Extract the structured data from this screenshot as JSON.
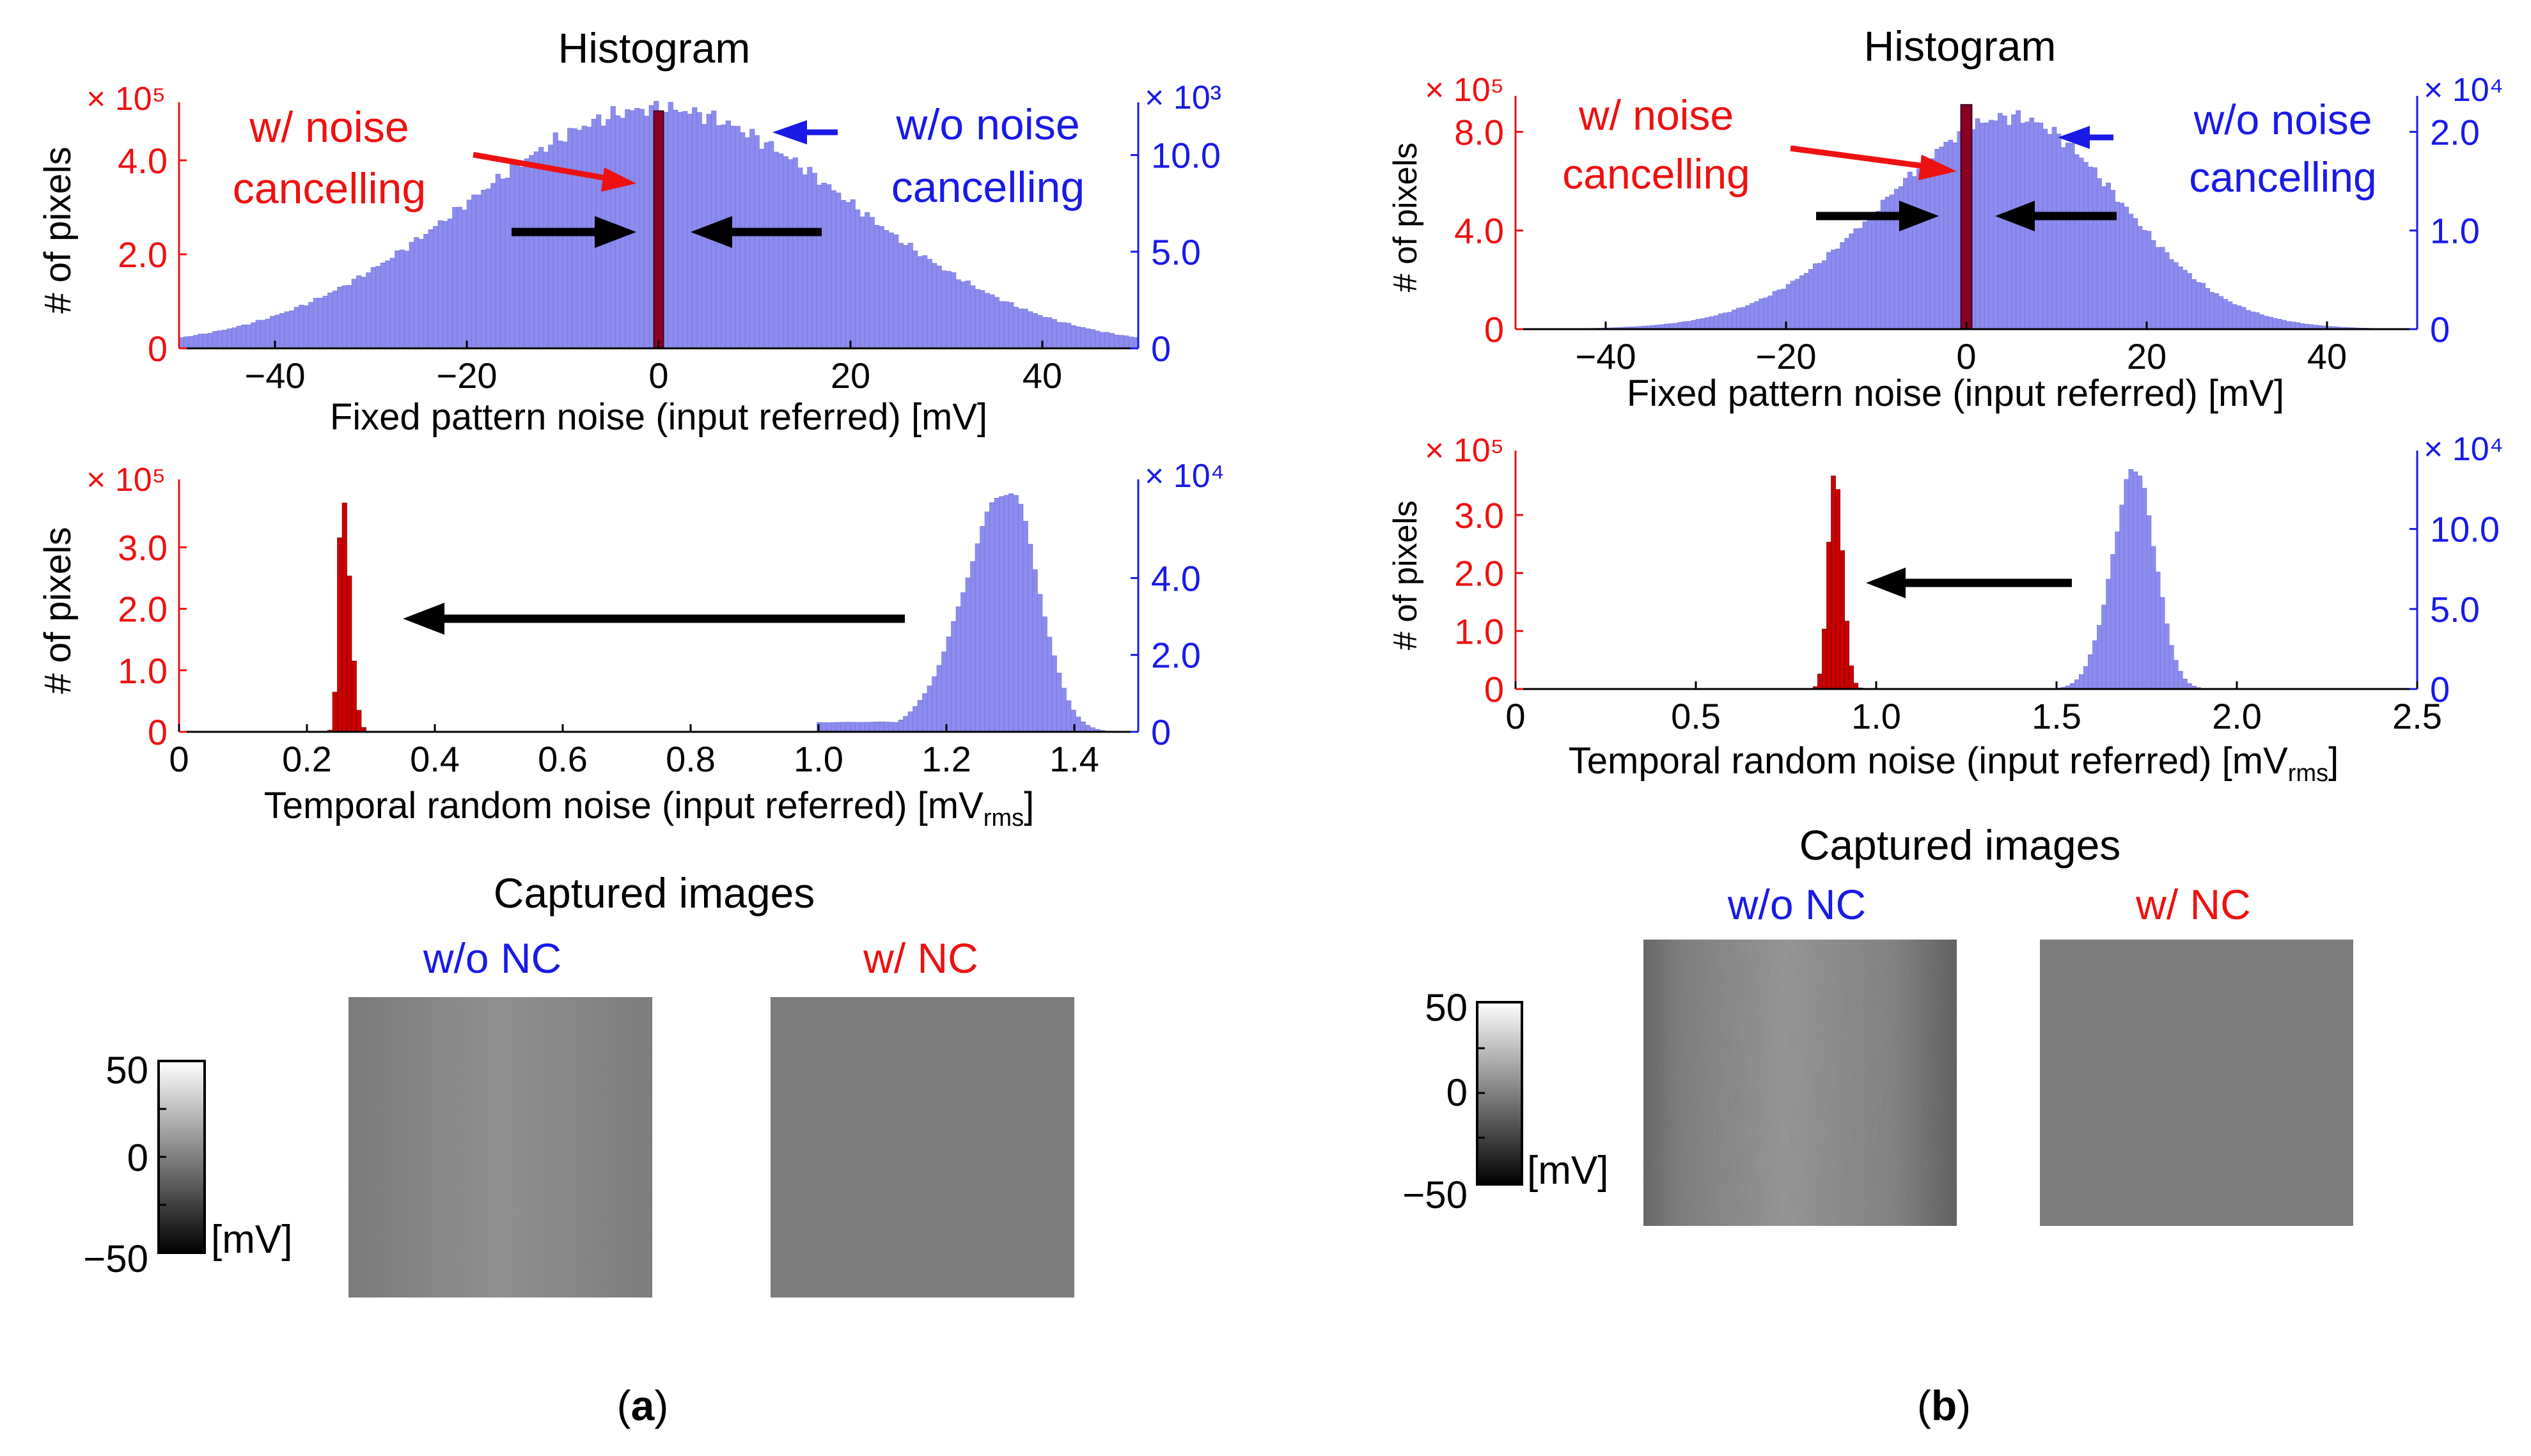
{
  "colors": {
    "red": "#ee1111",
    "blue": "#1a1ae6",
    "red_bar": "#cc0000",
    "blue_bar": "#8c8cee",
    "black": "#000000"
  },
  "panels": [
    {
      "label": "(a)",
      "histogram_title": "Histogram",
      "fpn": {
        "xlabel": "Fixed pattern noise (input referred) [mV]",
        "ylabel": "# of pixels",
        "left_multiplier": "× 10⁵",
        "right_multiplier": "× 10³",
        "annot_with": [
          "w/ noise",
          "cancelling"
        ],
        "annot_without": [
          "w/o noise",
          "cancelling"
        ]
      },
      "trn": {
        "xlabel": "Temporal random noise (input referred) [mV",
        "xlabel_sub": "rms",
        "xlabel_end": "]",
        "ylabel": "# of pixels",
        "left_multiplier": "× 10⁵",
        "right_multiplier": "× 10⁴"
      },
      "captured": {
        "title": "Captured images",
        "without_label": "w/o NC",
        "with_label": "w/ NC",
        "colorbar_ticks": [
          "50",
          "0",
          "−50"
        ],
        "colorbar_unit": "[mV]"
      }
    },
    {
      "label": "(b)",
      "histogram_title": "Histogram",
      "fpn": {
        "xlabel": "Fixed pattern noise (input referred) [mV]",
        "ylabel": "# of pixels",
        "left_multiplier": "× 10⁵",
        "right_multiplier": "× 10⁴",
        "annot_with": [
          "w/ noise",
          "cancelling"
        ],
        "annot_without": [
          "w/o noise",
          "cancelling"
        ]
      },
      "trn": {
        "xlabel": "Temporal random noise (input referred) [mV",
        "xlabel_sub": "rms",
        "xlabel_end": "]",
        "ylabel": "# of pixels",
        "left_multiplier": "× 10⁵",
        "right_multiplier": "× 10⁴"
      },
      "captured": {
        "title": "Captured images",
        "without_label": "w/o NC",
        "with_label": "w/ NC",
        "colorbar_ticks": [
          "50",
          "0",
          "−50"
        ],
        "colorbar_unit": "[mV]"
      }
    }
  ],
  "chart_data": [
    {
      "id": "a-fpn",
      "type": "bar",
      "title": "Histogram",
      "xlabel": "Fixed pattern noise (input referred) [mV]",
      "ylabel": "# of pixels",
      "xlim": [
        -50,
        50
      ],
      "x_ticks": [
        -40,
        -20,
        0,
        20,
        40
      ],
      "x_tick_labels": [
        "−40",
        "−20",
        "0",
        "20",
        "40"
      ],
      "left_axis": {
        "color": "red",
        "multiplier": "× 10⁵",
        "ylim": [
          0,
          5.1
        ],
        "ticks": [
          0,
          2,
          4
        ],
        "tick_labels": [
          "0",
          "2.0",
          "4.0"
        ]
      },
      "right_axis": {
        "color": "blue",
        "multiplier": "× 10³",
        "ylim": [
          0,
          12.4
        ],
        "ticks": [
          0,
          5,
          10
        ],
        "tick_labels": [
          "0",
          "5.0",
          "10.0"
        ]
      },
      "series": [
        {
          "name": "w/o noise cancelling",
          "axis": "right",
          "color": "blue",
          "shape": "gauss_skew",
          "center": 0,
          "sigma_left": 20,
          "sigma_right": 20,
          "peak": 12.4,
          "plateau": 10,
          "floor": 0
        },
        {
          "name": "w/ noise cancelling",
          "axis": "left",
          "color": "red",
          "shape": "spike",
          "center": 0,
          "width": 1.0,
          "peak": 5.05
        }
      ]
    },
    {
      "id": "a-trn",
      "type": "bar",
      "xlabel": "Temporal random noise (input referred) [mVrms]",
      "ylabel": "# of pixels",
      "xlim": [
        0,
        1.5
      ],
      "x_ticks": [
        0,
        0.2,
        0.4,
        0.6,
        0.8,
        1.0,
        1.2,
        1.4
      ],
      "x_tick_labels": [
        "0",
        "0.2",
        "0.4",
        "0.6",
        "0.8",
        "1.0",
        "1.2",
        "1.4"
      ],
      "left_axis": {
        "color": "red",
        "multiplier": "× 10⁵",
        "ylim": [
          0,
          4.0
        ],
        "ticks": [
          0,
          1,
          2,
          3
        ],
        "tick_labels": [
          "0",
          "1.0",
          "2.0",
          "3.0"
        ]
      },
      "right_axis": {
        "color": "blue",
        "multiplier": "× 10⁴",
        "ylim": [
          0,
          6.4
        ],
        "ticks": [
          0,
          2,
          4
        ],
        "tick_labels": [
          "0",
          "2.0",
          "4.0"
        ]
      },
      "series": [
        {
          "name": "w/o noise cancelling",
          "axis": "right",
          "color": "blue",
          "shape": "gauss_skew",
          "center": 1.3,
          "sigma_left": 0.07,
          "sigma_right": 0.045,
          "peak": 6.3,
          "floor": 0.25,
          "floor_from": 1.0
        },
        {
          "name": "w/ noise cancelling",
          "axis": "left",
          "color": "red",
          "shape": "gauss_skew",
          "center": 0.255,
          "sigma_left": 0.006,
          "sigma_right": 0.012,
          "peak": 3.8,
          "floor": 0
        }
      ]
    },
    {
      "id": "b-fpn",
      "type": "bar",
      "title": "Histogram",
      "xlabel": "Fixed pattern noise (input referred) [mV]",
      "ylabel": "# of pixels",
      "xlim": [
        -50,
        50
      ],
      "x_ticks": [
        -40,
        -20,
        0,
        20,
        40
      ],
      "x_tick_labels": [
        "−40",
        "−20",
        "0",
        "20",
        "40"
      ],
      "left_axis": {
        "color": "red",
        "multiplier": "× 10⁵",
        "ylim": [
          0,
          9.2
        ],
        "ticks": [
          0,
          4,
          8
        ],
        "tick_labels": [
          "0",
          "4.0",
          "8.0"
        ]
      },
      "right_axis": {
        "color": "blue",
        "multiplier": "× 10⁴",
        "ylim": [
          0,
          2.3
        ],
        "ticks": [
          0,
          1,
          2
        ],
        "tick_labels": [
          "0",
          "1.0",
          "2.0"
        ]
      },
      "series": [
        {
          "name": "w/o noise cancelling",
          "axis": "right",
          "color": "blue",
          "shape": "gauss_skew",
          "center": 5,
          "sigma_left": 14,
          "sigma_right": 12,
          "peak": 2.15,
          "floor": 0
        },
        {
          "name": "w/ noise cancelling",
          "axis": "left",
          "color": "red",
          "shape": "spike",
          "center": 0,
          "width": 1.2,
          "peak": 9.1
        }
      ]
    },
    {
      "id": "b-trn",
      "type": "bar",
      "xlabel": "Temporal random noise (input referred) [mVrms]",
      "ylabel": "# of pixels",
      "xlim": [
        0,
        2.5
      ],
      "x_ticks": [
        0,
        0.5,
        1.0,
        1.5,
        2.0,
        2.5
      ],
      "x_tick_labels": [
        "0",
        "0.5",
        "1.0",
        "1.5",
        "2.0",
        "2.5"
      ],
      "left_axis": {
        "color": "red",
        "multiplier": "× 10⁵",
        "ylim": [
          0,
          4.0
        ],
        "ticks": [
          0,
          1,
          2,
          3
        ],
        "tick_labels": [
          "0",
          "1.0",
          "2.0",
          "3.0"
        ]
      },
      "right_axis": {
        "color": "blue",
        "multiplier": "× 10⁴",
        "ylim": [
          0,
          14.5
        ],
        "ticks": [
          0,
          5,
          10
        ],
        "tick_labels": [
          "0",
          "5.0",
          "10.0"
        ]
      },
      "series": [
        {
          "name": "w/o noise cancelling",
          "axis": "right",
          "color": "blue",
          "shape": "gauss_skew",
          "center": 1.72,
          "sigma_left": 0.065,
          "sigma_right": 0.055,
          "peak": 13.7,
          "floor": 0
        },
        {
          "name": "w/ noise cancelling",
          "axis": "left",
          "color": "red",
          "shape": "gauss_skew",
          "center": 0.885,
          "sigma_left": 0.018,
          "sigma_right": 0.022,
          "peak": 3.72,
          "floor": 0
        }
      ]
    }
  ]
}
